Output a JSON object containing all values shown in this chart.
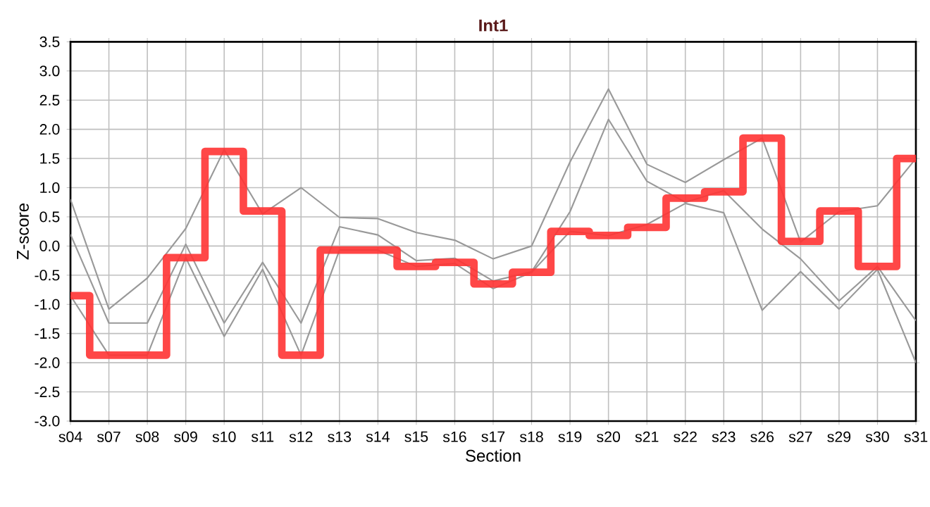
{
  "chart_data": {
    "type": "line",
    "title": "Int1",
    "xlabel": "Section",
    "ylabel": "Z-score",
    "categories": [
      "s04",
      "s07",
      "s08",
      "s09",
      "s10",
      "s11",
      "s12",
      "s13",
      "s14",
      "s15",
      "s16",
      "s17",
      "s18",
      "s19",
      "s20",
      "s21",
      "s22",
      "s23",
      "s26",
      "s27",
      "s29",
      "s30",
      "s31"
    ],
    "series": [
      {
        "color": "#999999",
        "values": [
          0.8,
          -1.08,
          -0.55,
          0.3,
          1.65,
          0.55,
          1.0,
          0.49,
          0.47,
          0.23,
          0.1,
          -0.22,
          0.0,
          1.44,
          2.69,
          1.4,
          1.09,
          1.48,
          1.85,
          0.07,
          0.59,
          0.69,
          1.5
        ]
      },
      {
        "color": "#999999",
        "values": [
          0.2,
          -1.32,
          -1.32,
          0.03,
          -1.32,
          -0.28,
          -1.32,
          0.33,
          0.19,
          -0.25,
          -0.21,
          -0.6,
          -0.44,
          0.59,
          2.17,
          1.11,
          0.75,
          0.95,
          0.29,
          -0.22,
          -0.94,
          -0.35,
          -1.28
        ]
      },
      {
        "color": "#999999",
        "values": [
          -0.85,
          -1.87,
          -1.87,
          -0.2,
          -1.55,
          -0.4,
          -1.87,
          -0.07,
          -0.07,
          -0.35,
          -0.3,
          -0.73,
          -0.45,
          0.25,
          0.18,
          0.37,
          0.73,
          0.57,
          -1.1,
          -0.44,
          -1.08,
          -0.4,
          -2.0
        ]
      },
      {
        "type": "step",
        "color": "#ff3333",
        "values": [
          -0.85,
          -1.87,
          -1.87,
          -0.2,
          1.62,
          0.6,
          -1.87,
          -0.07,
          -0.07,
          -0.35,
          -0.28,
          -0.65,
          -0.45,
          0.25,
          0.18,
          0.32,
          0.82,
          0.93,
          1.85,
          0.08,
          0.6,
          -0.35,
          1.5
        ]
      }
    ],
    "ylim": [
      -3.0,
      3.5
    ],
    "yticks": [
      {
        "value": -3,
        "label": "-3.0"
      },
      -2.5,
      {
        "value": -2,
        "label": "-2.0"
      },
      -1.5,
      {
        "value": -1,
        "label": "-1.0"
      },
      -0.5,
      {
        "value": 0,
        "label": "0.0"
      },
      0.5,
      {
        "value": 1,
        "label": "1.0"
      },
      1.5,
      {
        "value": 2,
        "label": "2.0"
      },
      2.5,
      {
        "value": 3,
        "label": "3.0"
      },
      3.5
    ],
    "grid": true
  }
}
